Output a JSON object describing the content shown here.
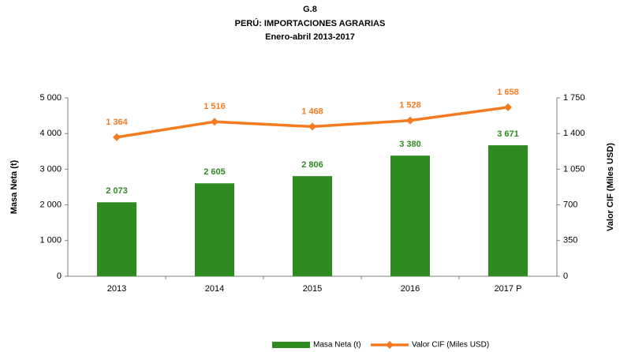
{
  "chart_data": {
    "type": "bar",
    "title": "G.8",
    "subtitle": [
      "PERÚ: IMPORTACIONES AGRARIAS",
      "Enero-abril 2013-2017"
    ],
    "y_label": "Masa Neta (t)",
    "y2_label": "Valor CIF (Miles USD)",
    "categories": [
      "2013",
      "2014",
      "2015",
      "2016",
      "2017 P"
    ],
    "series": [
      {
        "name": "Masa Neta (t)",
        "type": "bar",
        "color": "#2e8b1f",
        "values": [
          2073,
          2605,
          2806,
          3380,
          3671
        ],
        "value_labels": [
          "2 073",
          "2 605",
          "2 806",
          "3 380",
          "3 671"
        ]
      },
      {
        "name": "Valor CIF (Miles USD)",
        "type": "line",
        "axis": "y2",
        "color": "#f47b20",
        "values": [
          1364,
          1516,
          1468,
          1528,
          1658
        ],
        "value_labels": [
          "1 364",
          "1 516",
          "1 468",
          "1 528",
          "1 658"
        ]
      }
    ],
    "ylim": [
      0,
      5000
    ],
    "yticks": [
      0,
      {
        "value": 1000,
        "label": "1 000"
      },
      {
        "value": 2000,
        "label": "2 000"
      },
      {
        "value": 3000,
        "label": "3 000"
      },
      {
        "value": 4000,
        "label": "4 000"
      },
      {
        "value": 5000,
        "label": "5 000"
      }
    ],
    "y2lim": [
      0,
      1750
    ],
    "y2ticks": [
      0,
      350,
      700,
      {
        "value": 1050,
        "label": "1 050"
      },
      {
        "value": 1400,
        "label": "1 400"
      },
      {
        "value": 1750,
        "label": "1 750"
      }
    ],
    "grid": false,
    "legend": "bottom"
  }
}
